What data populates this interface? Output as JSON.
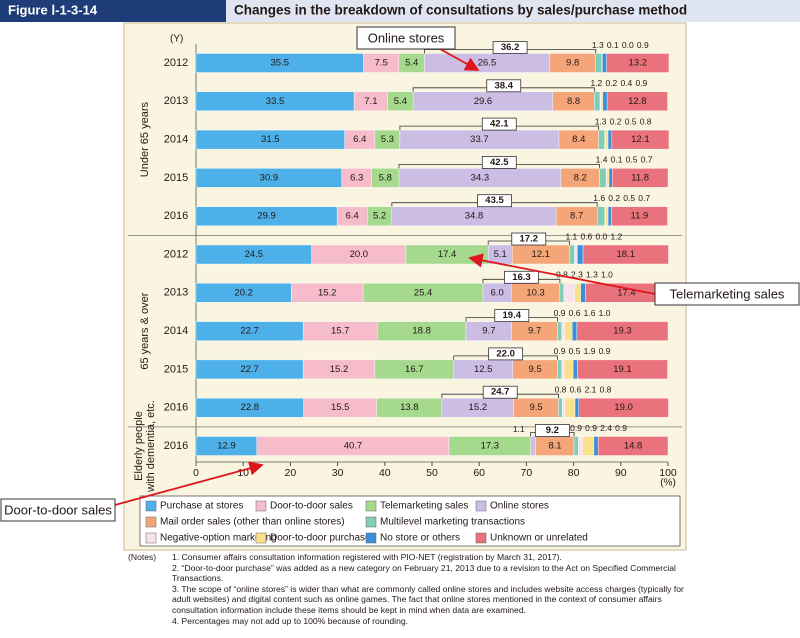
{
  "chart_data": {
    "type": "stacked-bar",
    "figure_label": "Figure Ⅰ-1-3-14",
    "title": "Changes in the breakdown of consultations by sales/purchase method",
    "y_unit": "(Y)",
    "x_unit": "(%)",
    "categories": [
      "2012",
      "2013",
      "2014",
      "2015",
      "2016",
      "2012",
      "2013",
      "2014",
      "2015",
      "2016",
      "2016"
    ],
    "groups": [
      [
        "Under 65 years"
      ],
      [
        "65 years & over"
      ],
      [
        "Elderly people",
        "with dementia, etc."
      ]
    ],
    "xlim": [
      0,
      100
    ],
    "xticks": [
      0,
      10,
      20,
      30,
      40,
      50,
      60,
      70,
      80,
      90,
      100
    ],
    "series": [
      {
        "name": "Purchase at stores",
        "color": "#4db0e8",
        "values": [
          35.5,
          33.5,
          31.5,
          30.9,
          29.9,
          24.5,
          20.2,
          22.7,
          22.7,
          22.8,
          12.9
        ],
        "value_labels": [
          "35.5",
          "33.5",
          "31.5",
          "30.9",
          "29.9",
          "24.5",
          "20.2",
          "22.7",
          "22.7",
          "22.8",
          "12.9"
        ]
      },
      {
        "name": "Door-to-door sales",
        "color": "#f6bccb",
        "values": [
          7.5,
          7.1,
          6.4,
          6.3,
          6.4,
          20,
          15.2,
          15.7,
          15.2,
          15.5,
          40.7
        ],
        "value_labels": [
          "7.5",
          "7.1",
          "6.4",
          "6.3",
          "6.4",
          "20.0",
          "15.2",
          "15.7",
          "15.2",
          "15.5",
          "40.7"
        ]
      },
      {
        "name": "Telemarketing sales",
        "color": "#a4d98e",
        "values": [
          5.4,
          5.4,
          5.3,
          5.8,
          5.2,
          17.4,
          25.4,
          18.8,
          16.7,
          13.8,
          17.3
        ],
        "value_labels": [
          "5.4",
          "5.4",
          "5.3",
          "5.8",
          "5.2",
          "17.4",
          "25.4",
          "18.8",
          "16.7",
          "13.8",
          "17.3"
        ]
      },
      {
        "name": "Online stores",
        "color": "#cbbde3",
        "values": [
          26.5,
          29.6,
          33.7,
          34.3,
          34.8,
          5.1,
          6,
          9.7,
          12.5,
          15.2,
          1.1
        ],
        "value_labels": [
          "26.5",
          "29.6",
          "33.7",
          "34.3",
          "34.8",
          "5.1",
          "6.0",
          "9.7",
          "12.5",
          "15.2",
          "1.1"
        ]
      },
      {
        "name": "Mail order sales (other than online stores)",
        "color": "#f5a679",
        "values": [
          9.8,
          8.8,
          8.4,
          8.2,
          8.7,
          12.1,
          10.3,
          9.7,
          9.5,
          9.5,
          8.1
        ],
        "value_labels": [
          "9.8",
          "8.8",
          "8.4",
          "8.2",
          "8.7",
          "12.1",
          "10.3",
          "9.7",
          "9.5",
          "9.5",
          "8.1"
        ]
      },
      {
        "name": "Multilevel marketing transactions",
        "color": "#7fcdb5",
        "values": [
          1.3,
          1.2,
          1.3,
          1.4,
          1.6,
          1.1,
          0.8,
          0.9,
          0.9,
          0.8,
          0.9
        ],
        "value_labels": [
          "1.3",
          "1.2",
          "1.3",
          "1.4",
          "1.6",
          "1.1",
          "0.8",
          "0.9",
          "0.9",
          "0.8",
          "0.9"
        ]
      },
      {
        "name": "Negative-option marketing",
        "color": "#f7e3ee",
        "values": [
          0.1,
          0.2,
          0.2,
          0.1,
          0.2,
          0.6,
          2.3,
          0.6,
          0.5,
          0.6,
          0.9
        ],
        "value_labels": [
          "0.1",
          "0.2",
          "0.2",
          "0.1",
          "0.2",
          "0.6",
          "2.3",
          "0.6",
          "0.5",
          "0.6",
          "0.9"
        ]
      },
      {
        "name": "Door-to-door purchase",
        "color": "#fbe08c",
        "values": [
          0,
          0.4,
          0.5,
          0.5,
          0.5,
          0,
          1.3,
          1.6,
          1.9,
          2.1,
          2.4
        ],
        "value_labels": [
          "0.0",
          "0.4",
          "0.5",
          "0.5",
          "0.5",
          "0.0",
          "1.3",
          "1.6",
          "1.9",
          "2.1",
          "2.4"
        ]
      },
      {
        "name": "No store or others",
        "color": "#3a8fd8",
        "values": [
          0.9,
          0.9,
          0.8,
          0.7,
          0.7,
          1.2,
          1,
          1,
          0.9,
          0.8,
          0.9
        ],
        "value_labels": [
          "0.9",
          "0.9",
          "0.8",
          "0.7",
          "0.7",
          "1.2",
          "1.0",
          "1.0",
          "0.9",
          "0.8",
          "0.9"
        ]
      },
      {
        "name": "Unknown or unrelated",
        "color": "#ea727c",
        "values": [
          13.2,
          12.8,
          12.1,
          11.8,
          11.9,
          18.1,
          17.4,
          19.3,
          19.1,
          19,
          14.8
        ],
        "value_labels": [
          "13.2",
          "12.8",
          "12.1",
          "11.8",
          "11.9",
          "18.1",
          "17.4",
          "19.3",
          "19.1",
          "19.0",
          "14.8"
        ]
      }
    ],
    "bracket_values": [
      36.2,
      38.4,
      42.1,
      42.5,
      43.5,
      17.2,
      16.3,
      19.4,
      22,
      24.7,
      9.2
    ],
    "bracket_labels": [
      "36.2",
      "38.4",
      "42.1",
      "42.5",
      "43.5",
      "17.2",
      "16.3",
      "19.4",
      "22.0",
      "24.7",
      "9.2"
    ],
    "callouts": [
      "Online stores",
      "Telemarketing sales",
      "Door-to-door sales"
    ],
    "notes_heading": "(Notes)",
    "notes": [
      "1. Consumer affairs consultation information registered with PIO-NET (registration by March 31, 2017).",
      "2. “Door-to-door purchase” was added as a new category on February 21, 2013 due to a revision to the Act on Specified Commercial Transactions.",
      "3. The scope of “online stores” is wider than what are commonly called online stores and includes website access charges (typically for adult websites) and digital content such as online games. The fact that online stores mentioned in the context of consumer affairs consultation information include these items should be kept in mind when data are examined.",
      "4. Percentages may not add up to 100% because of rounding."
    ]
  }
}
